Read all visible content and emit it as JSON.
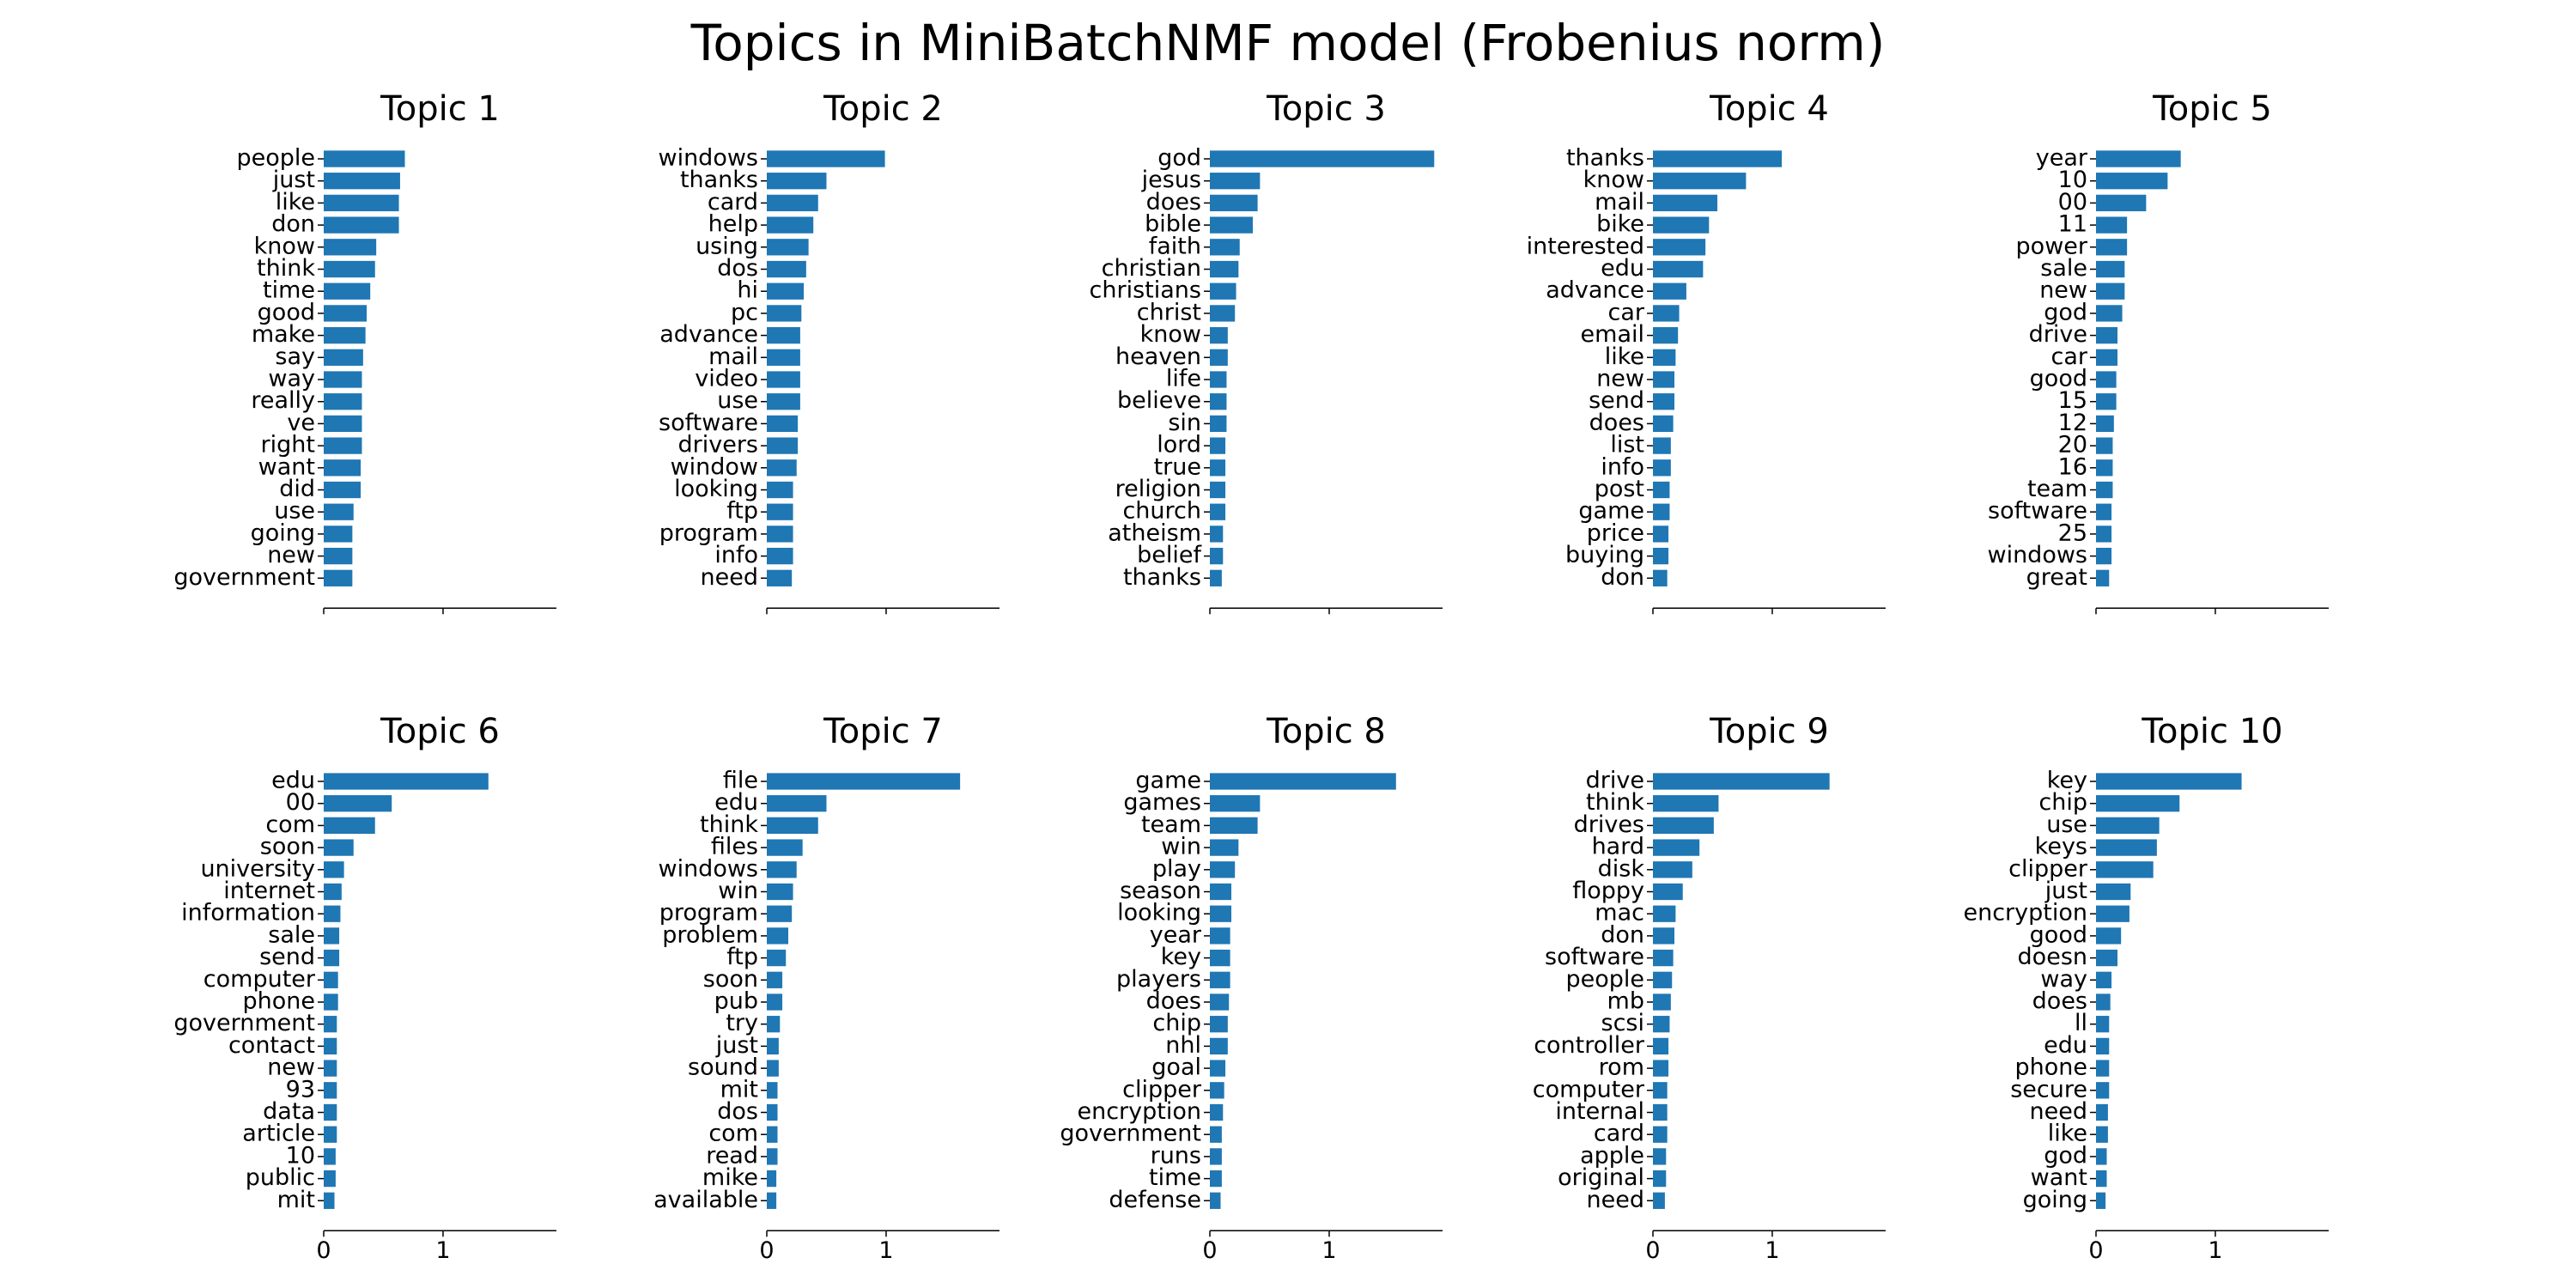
{
  "title": "Topics in MiniBatchNMF model (Frobenius norm)",
  "chart_data": [
    {
      "type": "bar",
      "orientation": "horizontal",
      "title": "Topic 1",
      "color": "#1f77b4",
      "xlim": [
        0,
        1.95
      ],
      "xticks": [
        0,
        1
      ],
      "show_xtick_labels": false,
      "categories": [
        "people",
        "just",
        "like",
        "don",
        "know",
        "think",
        "time",
        "good",
        "make",
        "say",
        "way",
        "really",
        "ve",
        "right",
        "want",
        "did",
        "use",
        "going",
        "new",
        "government"
      ],
      "values": [
        0.68,
        0.64,
        0.63,
        0.63,
        0.44,
        0.43,
        0.39,
        0.36,
        0.35,
        0.33,
        0.32,
        0.32,
        0.32,
        0.32,
        0.31,
        0.31,
        0.25,
        0.24,
        0.24,
        0.24
      ]
    },
    {
      "type": "bar",
      "orientation": "horizontal",
      "title": "Topic 2",
      "color": "#1f77b4",
      "xlim": [
        0,
        1.95
      ],
      "xticks": [
        0,
        1
      ],
      "show_xtick_labels": false,
      "categories": [
        "windows",
        "thanks",
        "card",
        "help",
        "using",
        "dos",
        "hi",
        "pc",
        "advance",
        "mail",
        "video",
        "use",
        "software",
        "drivers",
        "window",
        "looking",
        "ftp",
        "program",
        "info",
        "need"
      ],
      "values": [
        0.99,
        0.5,
        0.43,
        0.39,
        0.35,
        0.33,
        0.31,
        0.29,
        0.28,
        0.28,
        0.28,
        0.28,
        0.26,
        0.26,
        0.25,
        0.22,
        0.22,
        0.22,
        0.22,
        0.21
      ]
    },
    {
      "type": "bar",
      "orientation": "horizontal",
      "title": "Topic 3",
      "color": "#1f77b4",
      "xlim": [
        0,
        1.95
      ],
      "xticks": [
        0,
        1
      ],
      "show_xtick_labels": false,
      "categories": [
        "god",
        "jesus",
        "does",
        "bible",
        "faith",
        "christian",
        "christians",
        "christ",
        "know",
        "heaven",
        "life",
        "believe",
        "sin",
        "lord",
        "true",
        "religion",
        "church",
        "atheism",
        "belief",
        "thanks"
      ],
      "values": [
        1.88,
        0.42,
        0.4,
        0.36,
        0.25,
        0.24,
        0.22,
        0.21,
        0.15,
        0.15,
        0.14,
        0.14,
        0.14,
        0.13,
        0.13,
        0.13,
        0.13,
        0.11,
        0.11,
        0.1
      ]
    },
    {
      "type": "bar",
      "orientation": "horizontal",
      "title": "Topic 4",
      "color": "#1f77b4",
      "xlim": [
        0,
        1.95
      ],
      "xticks": [
        0,
        1
      ],
      "show_xtick_labels": false,
      "categories": [
        "thanks",
        "know",
        "mail",
        "bike",
        "interested",
        "edu",
        "advance",
        "car",
        "email",
        "like",
        "new",
        "send",
        "does",
        "list",
        "info",
        "post",
        "game",
        "price",
        "buying",
        "don"
      ],
      "values": [
        1.08,
        0.78,
        0.54,
        0.47,
        0.44,
        0.42,
        0.28,
        0.22,
        0.21,
        0.19,
        0.18,
        0.18,
        0.17,
        0.15,
        0.15,
        0.14,
        0.14,
        0.13,
        0.13,
        0.12
      ]
    },
    {
      "type": "bar",
      "orientation": "horizontal",
      "title": "Topic 5",
      "color": "#1f77b4",
      "xlim": [
        0,
        1.95
      ],
      "xticks": [
        0,
        1
      ],
      "show_xtick_labels": false,
      "categories": [
        "year",
        "10",
        "00",
        "11",
        "power",
        "sale",
        "new",
        "god",
        "drive",
        "car",
        "good",
        "15",
        "12",
        "20",
        "16",
        "team",
        "software",
        "25",
        "windows",
        "great"
      ],
      "values": [
        0.71,
        0.6,
        0.42,
        0.26,
        0.26,
        0.24,
        0.24,
        0.22,
        0.18,
        0.18,
        0.17,
        0.17,
        0.15,
        0.14,
        0.14,
        0.14,
        0.13,
        0.13,
        0.13,
        0.11
      ]
    },
    {
      "type": "bar",
      "orientation": "horizontal",
      "title": "Topic 6",
      "color": "#1f77b4",
      "xlim": [
        0,
        1.95
      ],
      "xticks": [
        0,
        1
      ],
      "show_xtick_labels": true,
      "categories": [
        "edu",
        "00",
        "com",
        "soon",
        "university",
        "internet",
        "information",
        "sale",
        "send",
        "computer",
        "phone",
        "government",
        "contact",
        "new",
        "93",
        "data",
        "article",
        "10",
        "public",
        "mit"
      ],
      "values": [
        1.38,
        0.57,
        0.43,
        0.25,
        0.17,
        0.15,
        0.14,
        0.13,
        0.13,
        0.12,
        0.12,
        0.11,
        0.11,
        0.11,
        0.11,
        0.11,
        0.11,
        0.1,
        0.1,
        0.09
      ]
    },
    {
      "type": "bar",
      "orientation": "horizontal",
      "title": "Topic 7",
      "color": "#1f77b4",
      "xlim": [
        0,
        1.95
      ],
      "xticks": [
        0,
        1
      ],
      "show_xtick_labels": true,
      "categories": [
        "file",
        "edu",
        "think",
        "files",
        "windows",
        "win",
        "program",
        "problem",
        "ftp",
        "soon",
        "pub",
        "try",
        "just",
        "sound",
        "mit",
        "dos",
        "com",
        "read",
        "mike",
        "available"
      ],
      "values": [
        1.62,
        0.5,
        0.43,
        0.3,
        0.25,
        0.22,
        0.21,
        0.18,
        0.16,
        0.13,
        0.13,
        0.11,
        0.1,
        0.1,
        0.09,
        0.09,
        0.09,
        0.09,
        0.08,
        0.08
      ]
    },
    {
      "type": "bar",
      "orientation": "horizontal",
      "title": "Topic 8",
      "color": "#1f77b4",
      "xlim": [
        0,
        1.95
      ],
      "xticks": [
        0,
        1
      ],
      "show_xtick_labels": true,
      "categories": [
        "game",
        "games",
        "team",
        "win",
        "play",
        "season",
        "looking",
        "year",
        "key",
        "players",
        "does",
        "chip",
        "nhl",
        "goal",
        "clipper",
        "encryption",
        "government",
        "runs",
        "time",
        "defense"
      ],
      "values": [
        1.56,
        0.42,
        0.4,
        0.24,
        0.21,
        0.18,
        0.18,
        0.17,
        0.17,
        0.17,
        0.16,
        0.15,
        0.15,
        0.13,
        0.12,
        0.11,
        0.1,
        0.1,
        0.1,
        0.09
      ]
    },
    {
      "type": "bar",
      "orientation": "horizontal",
      "title": "Topic 9",
      "color": "#1f77b4",
      "xlim": [
        0,
        1.95
      ],
      "xticks": [
        0,
        1
      ],
      "show_xtick_labels": true,
      "categories": [
        "drive",
        "think",
        "drives",
        "hard",
        "disk",
        "floppy",
        "mac",
        "don",
        "software",
        "people",
        "mb",
        "scsi",
        "controller",
        "rom",
        "computer",
        "internal",
        "card",
        "apple",
        "original",
        "need"
      ],
      "values": [
        1.48,
        0.55,
        0.51,
        0.39,
        0.33,
        0.25,
        0.19,
        0.18,
        0.17,
        0.16,
        0.15,
        0.14,
        0.13,
        0.13,
        0.12,
        0.12,
        0.12,
        0.11,
        0.11,
        0.1
      ]
    },
    {
      "type": "bar",
      "orientation": "horizontal",
      "title": "Topic 10",
      "color": "#1f77b4",
      "xlim": [
        0,
        1.95
      ],
      "xticks": [
        0,
        1
      ],
      "show_xtick_labels": true,
      "categories": [
        "key",
        "chip",
        "use",
        "keys",
        "clipper",
        "just",
        "encryption",
        "good",
        "doesn",
        "way",
        "does",
        "ll",
        "edu",
        "phone",
        "secure",
        "need",
        "like",
        "god",
        "want",
        "going"
      ],
      "values": [
        1.22,
        0.7,
        0.53,
        0.51,
        0.48,
        0.29,
        0.28,
        0.21,
        0.18,
        0.13,
        0.12,
        0.11,
        0.11,
        0.11,
        0.11,
        0.1,
        0.1,
        0.09,
        0.09,
        0.08
      ]
    }
  ]
}
